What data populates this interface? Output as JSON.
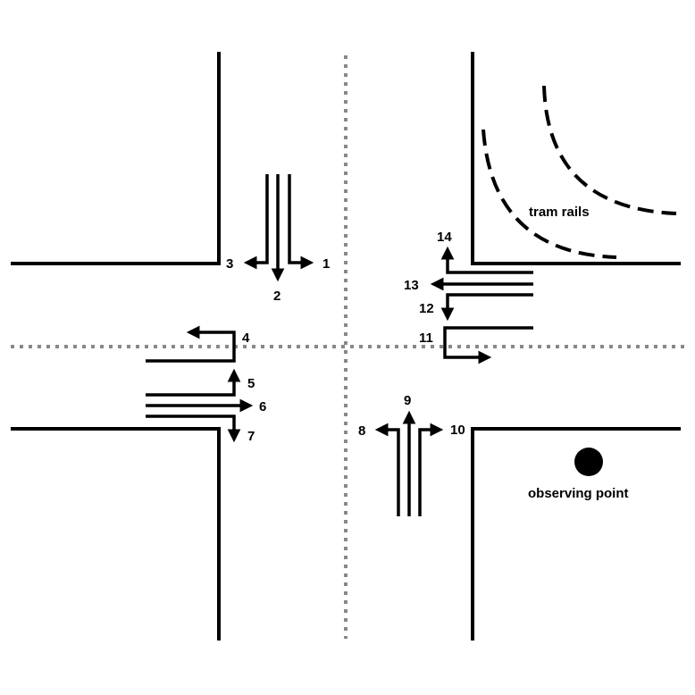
{
  "movements": [
    {
      "id": "m1",
      "label": "1"
    },
    {
      "id": "m2",
      "label": "2"
    },
    {
      "id": "m3",
      "label": "3"
    },
    {
      "id": "m4",
      "label": "4"
    },
    {
      "id": "m5",
      "label": "5"
    },
    {
      "id": "m6",
      "label": "6"
    },
    {
      "id": "m7",
      "label": "7"
    },
    {
      "id": "m8",
      "label": "8"
    },
    {
      "id": "m9",
      "label": "9"
    },
    {
      "id": "m10",
      "label": "10"
    },
    {
      "id": "m11",
      "label": "11"
    },
    {
      "id": "m12",
      "label": "12"
    },
    {
      "id": "m13",
      "label": "13"
    },
    {
      "id": "m14",
      "label": "14"
    }
  ],
  "annotations": {
    "tram_rails": "tram rails",
    "observing_point": "observing point"
  }
}
